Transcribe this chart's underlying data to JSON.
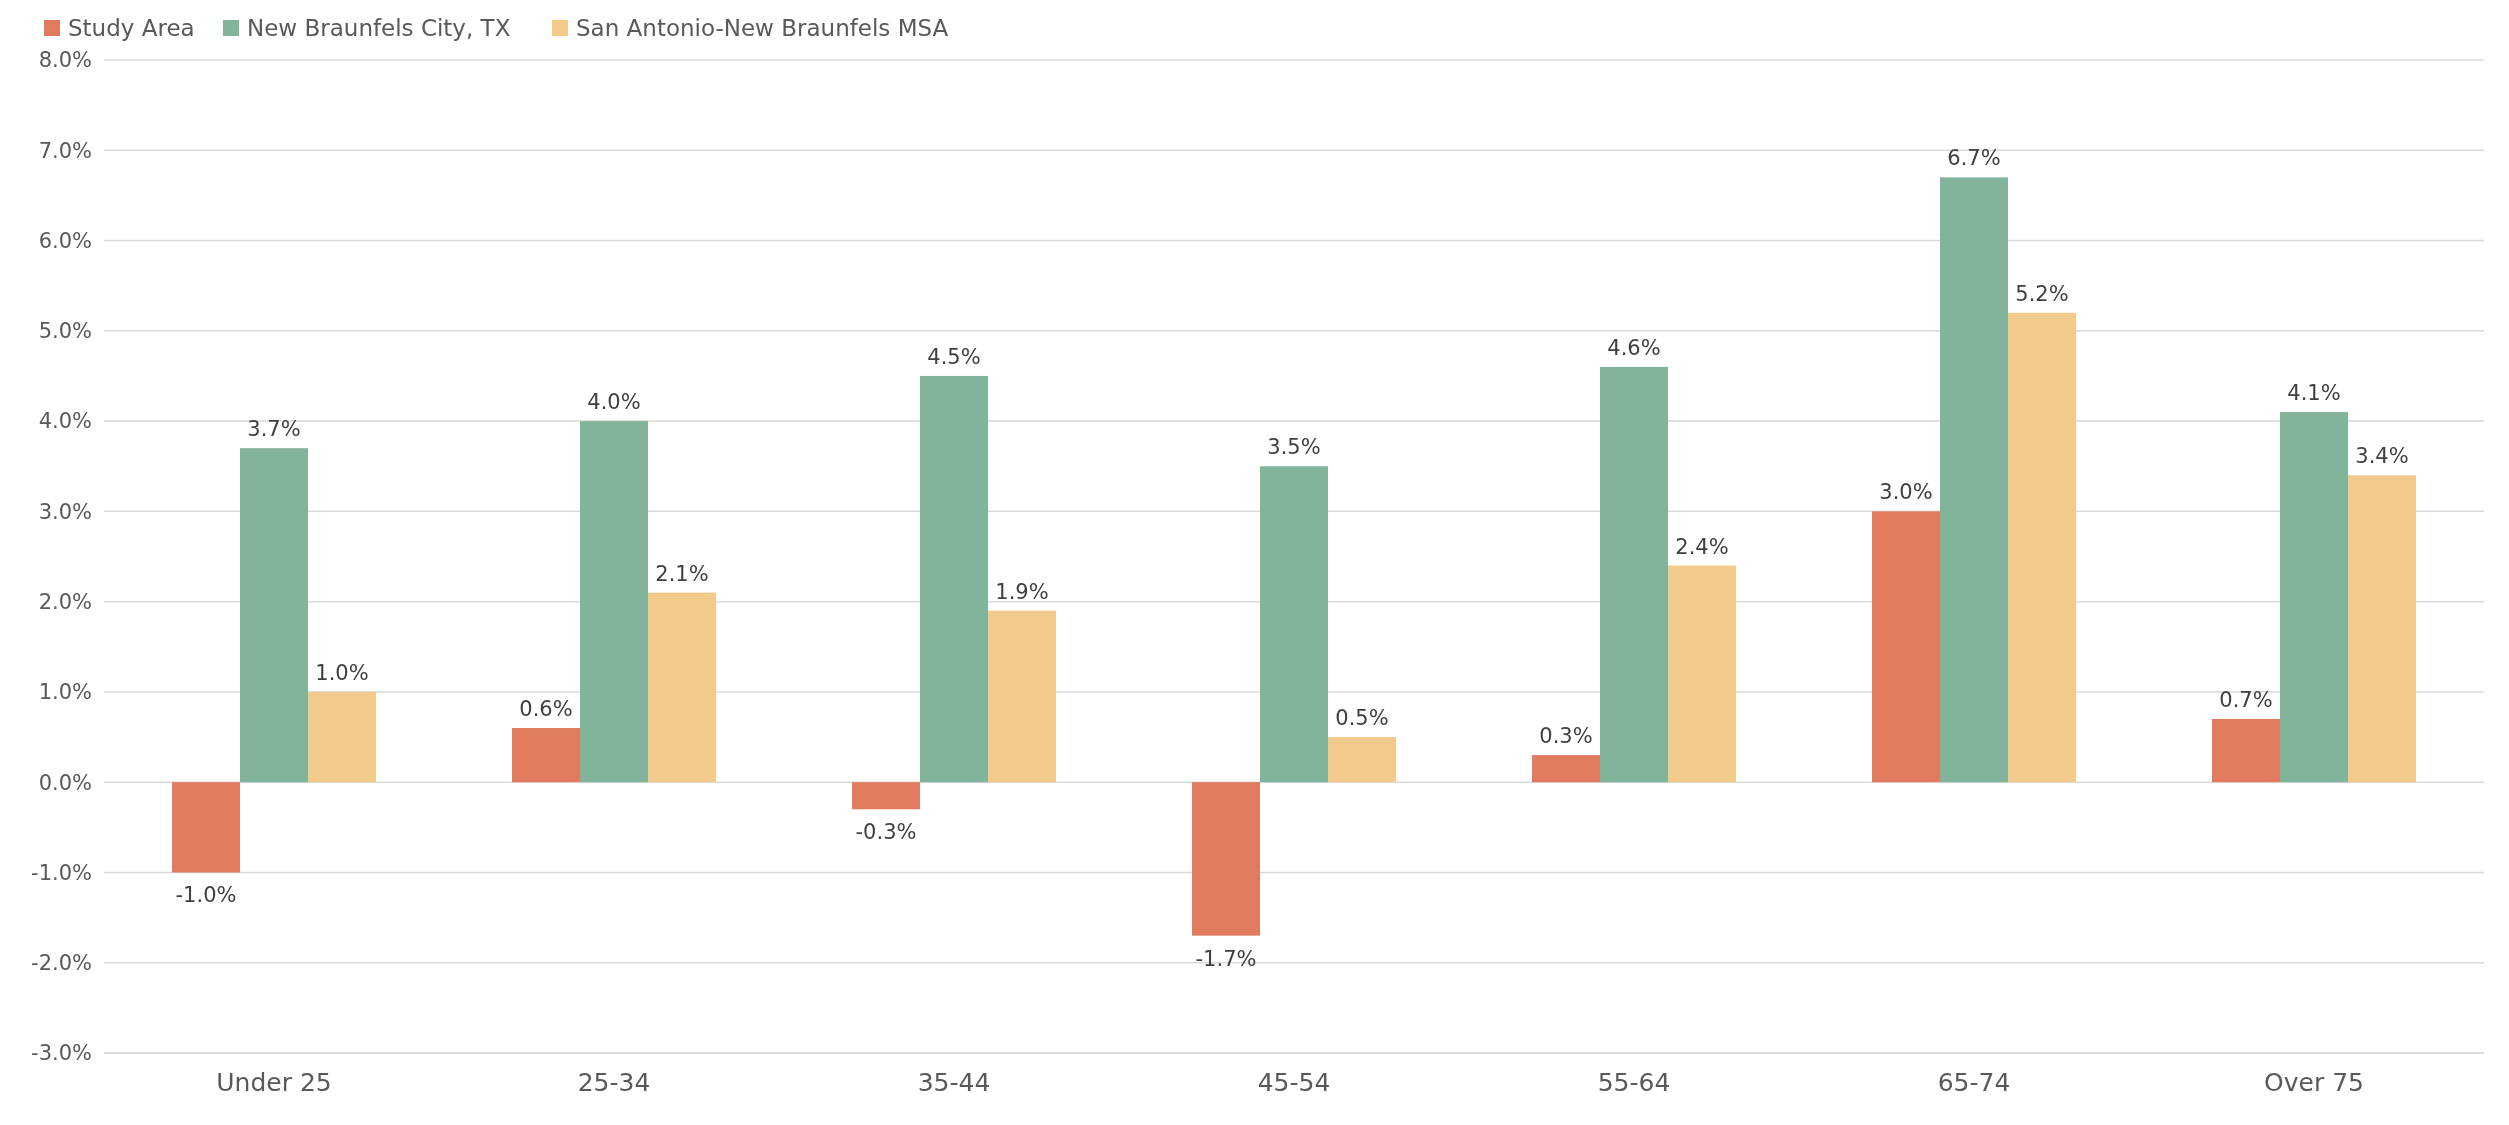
{
  "chart_data": {
    "type": "bar",
    "categories": [
      "Under 25",
      "25-34",
      "35-44",
      "45-54",
      "55-64",
      "65-74",
      "Over 75"
    ],
    "series": [
      {
        "name": "Study Area",
        "color": "#e07b5f",
        "values": [
          -1.0,
          0.6,
          -0.3,
          -1.7,
          0.3,
          3.0,
          0.7
        ],
        "value_labels": [
          "-1.0%",
          "0.6%",
          "-0.3%",
          "-1.7%",
          "0.3%",
          "3.0%",
          "0.7%"
        ]
      },
      {
        "name": "New Braunfels City, TX",
        "color": "#82b39b",
        "values": [
          3.7,
          4.0,
          4.5,
          3.5,
          4.6,
          6.7,
          4.1
        ],
        "value_labels": [
          "3.7%",
          "4.0%",
          "4.5%",
          "3.5%",
          "4.6%",
          "6.7%",
          "4.1%"
        ]
      },
      {
        "name": "San Antonio-New Braunfels MSA",
        "color": "#f2cb8c",
        "values": [
          1.0,
          2.1,
          1.9,
          0.5,
          2.4,
          5.2,
          3.4
        ],
        "value_labels": [
          "1.0%",
          "2.1%",
          "1.9%",
          "0.5%",
          "2.4%",
          "5.2%",
          "3.4%"
        ]
      }
    ],
    "ylim": [
      -3,
      8
    ],
    "yticks": [
      {
        "value": -3,
        "label": "-3.0%"
      },
      {
        "value": -2,
        "label": "-2.0%"
      },
      {
        "value": -1,
        "label": "-1.0%"
      },
      {
        "value": 0,
        "label": "0.0%"
      },
      {
        "value": 1,
        "label": "1.0%"
      },
      {
        "value": 2,
        "label": "2.0%"
      },
      {
        "value": 3,
        "label": "3.0%"
      },
      {
        "value": 4,
        "label": "4.0%"
      },
      {
        "value": 5,
        "label": "5.0%"
      },
      {
        "value": 6,
        "label": "6.0%"
      },
      {
        "value": 7,
        "label": "7.0%"
      },
      {
        "value": 8,
        "label": "8.0%"
      }
    ],
    "grid": "y",
    "legend": "top left"
  }
}
